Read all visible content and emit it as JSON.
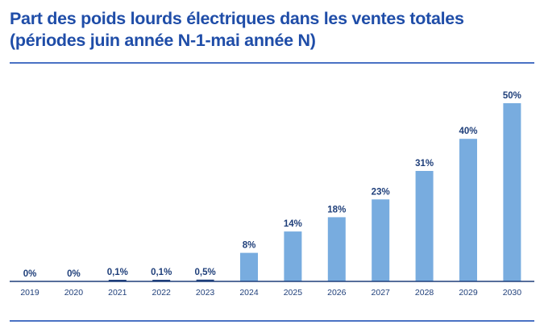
{
  "title": {
    "line1": "Part des poids lourds électriques dans les ventes totales",
    "line2": "(périodes juin année N-1-mai année N)"
  },
  "colors": {
    "title": "#1f4da8",
    "bar": "#78acdf",
    "axis": "#1f3f7a",
    "label": "#1f3f7a",
    "rule": "#4a72c4"
  },
  "chart_data": {
    "type": "bar",
    "categories": [
      "2019",
      "2020",
      "2021",
      "2022",
      "2023",
      "2024",
      "2025",
      "2026",
      "2027",
      "2028",
      "2029",
      "2030"
    ],
    "values": [
      0,
      0,
      0.1,
      0.1,
      0.5,
      8,
      14,
      18,
      23,
      31,
      40,
      50
    ],
    "data_labels": [
      "0%",
      "0%",
      "0,1%",
      "0,1%",
      "0,5%",
      "8%",
      "14%",
      "18%",
      "23%",
      "31%",
      "40%",
      "50%"
    ],
    "title": "Part des poids lourds électriques dans les ventes totales",
    "subtitle": "(périodes juin année N-1-mai année N)",
    "xlabel": "",
    "ylabel": "",
    "ylim": [
      0,
      50
    ],
    "grid": false,
    "legend": "none"
  }
}
